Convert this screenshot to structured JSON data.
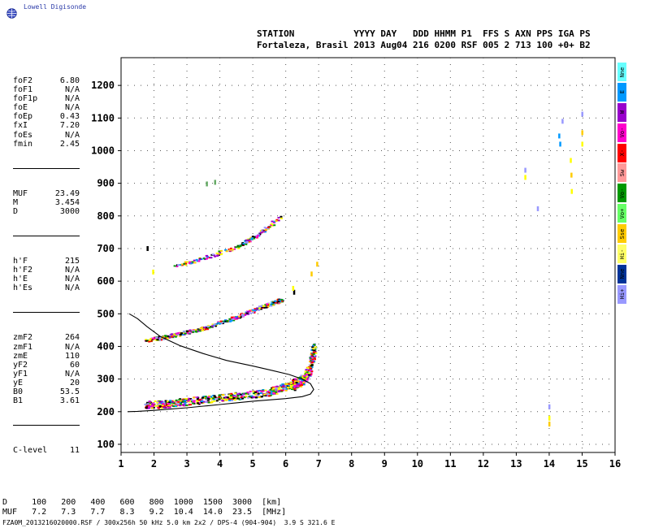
{
  "logo": {
    "text": "Lowell Digisonde"
  },
  "header": {
    "line1": "STATION           YYYY DAY   DDD HHMM P1  FFS S AXN PPS IGA PS",
    "line2": "Fortaleza, Brasil 2013 Aug04 216 0200 RSF 005 2 713 100 +0+ B2"
  },
  "params_group1": [
    {
      "name": "foF2",
      "value": "6.80"
    },
    {
      "name": "foF1",
      "value": "N/A"
    },
    {
      "name": "foF1p",
      "value": "N/A"
    },
    {
      "name": "foE",
      "value": "N/A"
    },
    {
      "name": "foEp",
      "value": "0.43"
    },
    {
      "name": "fxI",
      "value": "7.20"
    },
    {
      "name": "foEs",
      "value": "N/A"
    },
    {
      "name": "fmin",
      "value": "2.45"
    }
  ],
  "params_group2": [
    {
      "name": "MUF",
      "value": "23.49"
    },
    {
      "name": "M",
      "value": "3.454"
    },
    {
      "name": "D",
      "value": "3000"
    }
  ],
  "params_group3": [
    {
      "name": "h'F",
      "value": "215"
    },
    {
      "name": "h'F2",
      "value": "N/A"
    },
    {
      "name": "h'E",
      "value": "N/A"
    },
    {
      "name": "h'Es",
      "value": "N/A"
    }
  ],
  "params_group4": [
    {
      "name": "zmF2",
      "value": "264"
    },
    {
      "name": "zmF1",
      "value": "N/A"
    },
    {
      "name": "zmE",
      "value": "110"
    },
    {
      "name": "yF2",
      "value": "60"
    },
    {
      "name": "yF1",
      "value": "N/A"
    },
    {
      "name": "yE",
      "value": "20"
    },
    {
      "name": "B0",
      "value": "53.5"
    },
    {
      "name": "B1",
      "value": "3.61"
    }
  ],
  "params_group5": [
    {
      "name": "C-level",
      "value": "11"
    }
  ],
  "side_legend": [
    {
      "label": "Nne",
      "color": "#66ffff"
    },
    {
      "label": "E",
      "color": "#0099ff"
    },
    {
      "label": "W",
      "color": "#9900cc"
    },
    {
      "label": "Vo-",
      "color": "#ff00cc"
    },
    {
      "label": "X-",
      "color": "#ff0000"
    },
    {
      "label": "Sw",
      "color": "#ff9999"
    },
    {
      "label": "Vo-",
      "color": "#009900"
    },
    {
      "label": "Vo+",
      "color": "#66ff66"
    },
    {
      "label": "Sse",
      "color": "#ffcc00"
    },
    {
      "label": "Hi-",
      "color": "#ffff66"
    },
    {
      "label": "Nne",
      "color": "#003399"
    },
    {
      "label": "Hi+",
      "color": "#9999ff"
    }
  ],
  "muf_table": {
    "line1": "D     100   200   400   600   800  1000  1500  3000  [km]",
    "line2": "MUF   7.2   7.3   7.7   8.3   9.2  10.4  14.0  23.5  [MHz]"
  },
  "footer": "FZA0M_2013216020000.RSF / 300x256h 50 kHz 5.0 km 2x2 / DPS-4 (904-904)  3.9 S 321.6 E",
  "chart_data": {
    "type": "scatter",
    "x_ticks": [
      "1",
      "2",
      "3",
      "4",
      "5",
      "6",
      "7",
      "8",
      "9",
      "10",
      "11",
      "12",
      "13",
      "14",
      "15",
      "16"
    ],
    "y_ticks": [
      "100",
      "200",
      "300",
      "400",
      "500",
      "600",
      "700",
      "800",
      "900",
      "1000",
      "1100",
      "1200"
    ],
    "xlim": [
      1,
      16
    ],
    "ylim": [
      75,
      1285
    ],
    "grid": "dotted",
    "colors": [
      "#ff00cc",
      "#009900",
      "#ffff00",
      "#ffcc00",
      "#9999ff",
      "#000000",
      "#9900cc",
      "#ff0000",
      "#0099ff"
    ],
    "echo_traces": [
      {
        "name": "F2 O-trace",
        "color_mix": "dense",
        "f": [
          1.75,
          2.5,
          3.5,
          4.5,
          5.5,
          6.2,
          6.5,
          6.7,
          6.85
        ],
        "h": [
          218,
          222,
          235,
          245,
          258,
          282,
          300,
          330,
          400
        ]
      },
      {
        "name": "F2 2nd hop",
        "color_mix": "medium",
        "f": [
          1.75,
          2.5,
          3.5,
          4.5,
          5.5,
          5.85
        ],
        "h": [
          418,
          432,
          455,
          490,
          530,
          542
        ]
      },
      {
        "name": "F2 3rd hop",
        "color_mix": "sparse",
        "f": [
          2.6,
          3.5,
          4.5,
          5.2,
          5.8
        ],
        "h": [
          645,
          670,
          705,
          745,
          795
        ]
      }
    ],
    "profile_curve": {
      "f": [
        1.25,
        1.5,
        1.8,
        2.2,
        2.8,
        3.5,
        4.2,
        5.0,
        5.6,
        6.1,
        6.5,
        6.75,
        6.85,
        6.75,
        6.5,
        6.0,
        5.5,
        5.0,
        4.5,
        4.0,
        3.5,
        3.0,
        2.5,
        2.0,
        1.5,
        1.2
      ],
      "h": [
        500,
        485,
        460,
        430,
        402,
        378,
        357,
        340,
        326,
        314,
        300,
        286,
        268,
        254,
        246,
        240,
        236,
        232,
        227,
        222,
        217,
        212,
        208,
        204,
        201,
        200
      ]
    },
    "isolated_points": [
      {
        "f": 1.8,
        "h": 700,
        "c": "#000000"
      },
      {
        "f": 1.97,
        "h": 628,
        "c": "#ffff00"
      },
      {
        "f": 3.6,
        "h": 898,
        "c": "#66aa66"
      },
      {
        "f": 3.85,
        "h": 903,
        "c": "#66aa66"
      },
      {
        "f": 6.25,
        "h": 566,
        "c": "#000000"
      },
      {
        "f": 6.22,
        "h": 578,
        "c": "#ffff00"
      },
      {
        "f": 6.78,
        "h": 622,
        "c": "#ffcc00"
      },
      {
        "f": 6.95,
        "h": 652,
        "c": "#ffcc00"
      },
      {
        "f": 13.27,
        "h": 940,
        "c": "#9999ff"
      },
      {
        "f": 13.27,
        "h": 918,
        "c": "#ffff00"
      },
      {
        "f": 13.65,
        "h": 822,
        "c": "#9999ff"
      },
      {
        "f": 14.3,
        "h": 1045,
        "c": "#0099ff"
      },
      {
        "f": 14.33,
        "h": 1020,
        "c": "#0099ff"
      },
      {
        "f": 14.4,
        "h": 1090,
        "c": "#9999ff"
      },
      {
        "f": 14.65,
        "h": 970,
        "c": "#ffff00"
      },
      {
        "f": 14.67,
        "h": 925,
        "c": "#ffcc00"
      },
      {
        "f": 14.68,
        "h": 875,
        "c": "#ffff00"
      },
      {
        "f": 15.0,
        "h": 1112,
        "c": "#9999ff"
      },
      {
        "f": 15.0,
        "h": 1055,
        "c": "#ffcc00"
      },
      {
        "f": 15.0,
        "h": 1020,
        "c": "#ffff00"
      },
      {
        "f": 14.0,
        "h": 215,
        "c": "#9999ff"
      },
      {
        "f": 14.0,
        "h": 180,
        "c": "#ffff00"
      },
      {
        "f": 14.0,
        "h": 162,
        "c": "#ffcc00"
      }
    ]
  }
}
